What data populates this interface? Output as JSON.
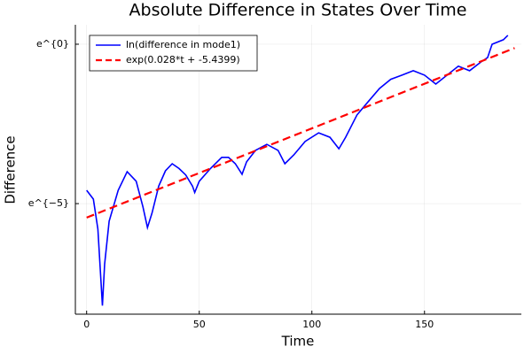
{
  "chart_data": {
    "type": "line",
    "title": "Absolute Difference in States Over Time",
    "x_label": "Time",
    "y_label": "Difference",
    "y_log": true,
    "grid": true,
    "legend": "top-left",
    "xlim": [
      -5,
      193
    ],
    "ylim": [
      0.00021,
      1.84
    ],
    "xticks": [
      0,
      50,
      100,
      150
    ],
    "yticks": [
      {
        "value": 0.006738,
        "label": "e^{−5}"
      },
      {
        "value": 1,
        "label": "e^{0}"
      }
    ],
    "series": [
      {
        "name": "ln(difference in mode1)",
        "color": "#0000ff",
        "dash": false,
        "x": [
          0,
          3,
          5,
          7,
          8,
          10,
          14,
          18,
          22,
          25,
          27,
          29,
          32,
          35,
          38,
          41,
          44,
          47,
          48,
          50,
          55,
          60,
          63,
          66,
          69,
          71,
          75,
          80,
          85,
          88,
          92,
          97,
          103,
          108,
          112,
          115,
          120,
          125,
          130,
          135,
          140,
          145,
          150,
          155,
          160,
          165,
          170,
          175,
          178,
          180,
          185,
          187
        ],
        "values": [
          0.01025,
          0.00775,
          0.003028,
          0.0002747,
          0.001008,
          0.003887,
          0.01025,
          0.01832,
          0.01357,
          0.006097,
          0.003183,
          0.004992,
          0.01168,
          0.01887,
          0.02352,
          0.02024,
          0.01657,
          0.01168,
          0.009562,
          0.01357,
          0.02024,
          0.02872,
          0.02872,
          0.02352,
          0.01691,
          0.02497,
          0.03579,
          0.04328,
          0.03579,
          0.02352,
          0.03111,
          0.04736,
          0.06204,
          0.05393,
          0.03763,
          0.05393,
          0.1086,
          0.1653,
          0.2491,
          0.3329,
          0.3791,
          0.436,
          0.3791,
          0.2865,
          0.3791,
          0.5016,
          0.436,
          0.5712,
          0.657,
          1,
          1.15,
          1.323
        ]
      },
      {
        "name": "exp(0.028*t + -5.4399)",
        "color": "#ff0000",
        "dash": true,
        "x": [
          0,
          190
        ],
        "values": [
          0.004338,
          0.887
        ]
      }
    ]
  }
}
